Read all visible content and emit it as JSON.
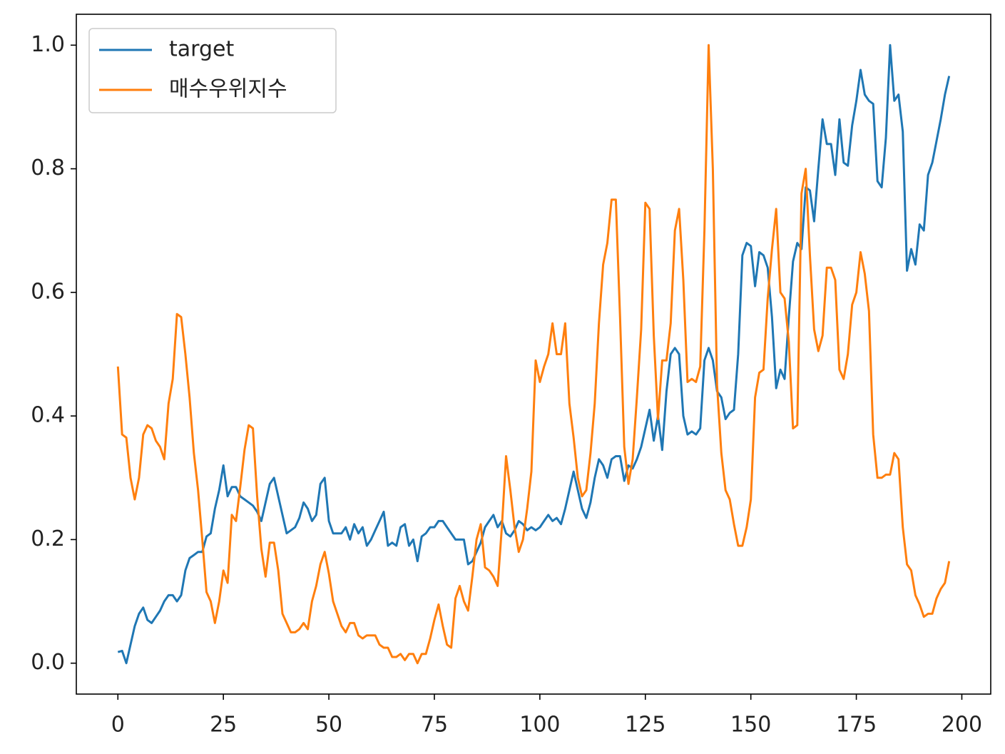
{
  "chart_data": {
    "type": "line",
    "x": [
      0,
      1,
      2,
      3,
      4,
      5,
      6,
      7,
      8,
      9,
      10,
      11,
      12,
      13,
      14,
      15,
      16,
      17,
      18,
      19,
      20,
      21,
      22,
      23,
      24,
      25,
      26,
      27,
      28,
      29,
      30,
      31,
      32,
      33,
      34,
      35,
      36,
      37,
      38,
      39,
      40,
      41,
      42,
      43,
      44,
      45,
      46,
      47,
      48,
      49,
      50,
      51,
      52,
      53,
      54,
      55,
      56,
      57,
      58,
      59,
      60,
      61,
      62,
      63,
      64,
      65,
      66,
      67,
      68,
      69,
      70,
      71,
      72,
      73,
      74,
      75,
      76,
      77,
      78,
      79,
      80,
      81,
      82,
      83,
      84,
      85,
      86,
      87,
      88,
      89,
      90,
      91,
      92,
      93,
      94,
      95,
      96,
      97,
      98,
      99,
      100,
      101,
      102,
      103,
      104,
      105,
      106,
      107,
      108,
      109,
      110,
      111,
      112,
      113,
      114,
      115,
      116,
      117,
      118,
      119,
      120,
      121,
      122,
      123,
      124,
      125,
      126,
      127,
      128,
      129,
      130,
      131,
      132,
      133,
      134,
      135,
      136,
      137,
      138,
      139,
      140,
      141,
      142,
      143,
      144,
      145,
      146,
      147,
      148,
      149,
      150,
      151,
      152,
      153,
      154,
      155,
      156,
      157,
      158,
      159,
      160,
      161,
      162,
      163,
      164,
      165,
      166,
      167,
      168,
      169,
      170,
      171,
      172,
      173,
      174,
      175,
      176,
      177,
      178,
      179,
      180,
      181,
      182,
      183,
      184,
      185,
      186,
      187,
      188,
      189,
      190,
      191,
      192,
      193,
      194,
      195,
      196,
      197
    ],
    "series": [
      {
        "name": "target",
        "color": "#1f77b4",
        "values": [
          0.018,
          0.02,
          0.0,
          0.03,
          0.06,
          0.08,
          0.09,
          0.07,
          0.065,
          0.075,
          0.085,
          0.1,
          0.11,
          0.11,
          0.1,
          0.11,
          0.15,
          0.17,
          0.175,
          0.18,
          0.18,
          0.205,
          0.21,
          0.25,
          0.28,
          0.32,
          0.27,
          0.285,
          0.285,
          0.27,
          0.265,
          0.26,
          0.255,
          0.245,
          0.23,
          0.26,
          0.29,
          0.3,
          0.27,
          0.24,
          0.21,
          0.215,
          0.22,
          0.235,
          0.26,
          0.25,
          0.23,
          0.24,
          0.29,
          0.3,
          0.23,
          0.21,
          0.21,
          0.21,
          0.22,
          0.2,
          0.225,
          0.21,
          0.22,
          0.19,
          0.2,
          0.215,
          0.23,
          0.245,
          0.19,
          0.195,
          0.19,
          0.22,
          0.225,
          0.19,
          0.2,
          0.165,
          0.205,
          0.21,
          0.22,
          0.22,
          0.23,
          0.23,
          0.22,
          0.21,
          0.2,
          0.2,
          0.2,
          0.16,
          0.165,
          0.18,
          0.195,
          0.22,
          0.23,
          0.24,
          0.22,
          0.23,
          0.21,
          0.205,
          0.215,
          0.23,
          0.225,
          0.215,
          0.22,
          0.215,
          0.22,
          0.23,
          0.24,
          0.23,
          0.235,
          0.225,
          0.25,
          0.28,
          0.31,
          0.28,
          0.25,
          0.235,
          0.26,
          0.3,
          0.33,
          0.32,
          0.3,
          0.33,
          0.335,
          0.335,
          0.295,
          0.32,
          0.315,
          0.33,
          0.35,
          0.38,
          0.41,
          0.36,
          0.4,
          0.345,
          0.44,
          0.5,
          0.51,
          0.5,
          0.4,
          0.37,
          0.375,
          0.37,
          0.38,
          0.49,
          0.51,
          0.49,
          0.44,
          0.43,
          0.395,
          0.405,
          0.41,
          0.5,
          0.66,
          0.68,
          0.675,
          0.61,
          0.665,
          0.66,
          0.64,
          0.56,
          0.445,
          0.475,
          0.46,
          0.56,
          0.65,
          0.68,
          0.67,
          0.77,
          0.765,
          0.715,
          0.8,
          0.88,
          0.84,
          0.84,
          0.79,
          0.88,
          0.81,
          0.805,
          0.87,
          0.91,
          0.96,
          0.92,
          0.91,
          0.905,
          0.78,
          0.77,
          0.85,
          1.0,
          0.91,
          0.92,
          0.86,
          0.635,
          0.67,
          0.645,
          0.71,
          0.7,
          0.79,
          0.81,
          0.845,
          0.88,
          0.92,
          0.95
        ]
      },
      {
        "name": "매수우위지수",
        "color": "#ff7f0e",
        "values": [
          0.48,
          0.37,
          0.365,
          0.3,
          0.265,
          0.3,
          0.37,
          0.385,
          0.38,
          0.36,
          0.35,
          0.33,
          0.42,
          0.46,
          0.565,
          0.56,
          0.5,
          0.43,
          0.34,
          0.28,
          0.2,
          0.115,
          0.1,
          0.065,
          0.1,
          0.15,
          0.13,
          0.24,
          0.23,
          0.285,
          0.345,
          0.385,
          0.38,
          0.27,
          0.185,
          0.14,
          0.195,
          0.195,
          0.15,
          0.08,
          0.065,
          0.05,
          0.05,
          0.055,
          0.065,
          0.055,
          0.1,
          0.125,
          0.16,
          0.18,
          0.145,
          0.1,
          0.08,
          0.06,
          0.05,
          0.065,
          0.065,
          0.045,
          0.04,
          0.045,
          0.045,
          0.045,
          0.03,
          0.025,
          0.025,
          0.01,
          0.01,
          0.015,
          0.005,
          0.015,
          0.015,
          0.0,
          0.015,
          0.015,
          0.04,
          0.07,
          0.095,
          0.06,
          0.03,
          0.025,
          0.105,
          0.125,
          0.1,
          0.085,
          0.14,
          0.2,
          0.225,
          0.155,
          0.15,
          0.14,
          0.125,
          0.22,
          0.335,
          0.28,
          0.22,
          0.18,
          0.2,
          0.25,
          0.31,
          0.49,
          0.455,
          0.48,
          0.5,
          0.55,
          0.5,
          0.5,
          0.55,
          0.42,
          0.365,
          0.3,
          0.27,
          0.28,
          0.34,
          0.42,
          0.55,
          0.645,
          0.68,
          0.75,
          0.75,
          0.56,
          0.35,
          0.29,
          0.33,
          0.43,
          0.54,
          0.745,
          0.735,
          0.53,
          0.395,
          0.49,
          0.49,
          0.55,
          0.7,
          0.735,
          0.62,
          0.455,
          0.46,
          0.455,
          0.48,
          0.7,
          1.0,
          0.8,
          0.45,
          0.34,
          0.28,
          0.265,
          0.225,
          0.19,
          0.19,
          0.22,
          0.265,
          0.43,
          0.47,
          0.475,
          0.59,
          0.67,
          0.735,
          0.6,
          0.59,
          0.52,
          0.38,
          0.385,
          0.76,
          0.8,
          0.66,
          0.54,
          0.505,
          0.53,
          0.64,
          0.64,
          0.62,
          0.475,
          0.46,
          0.5,
          0.58,
          0.6,
          0.665,
          0.63,
          0.57,
          0.37,
          0.3,
          0.3,
          0.305,
          0.305,
          0.34,
          0.33,
          0.22,
          0.16,
          0.15,
          0.11,
          0.095,
          0.075,
          0.08,
          0.08,
          0.105,
          0.12,
          0.13,
          0.165
        ]
      }
    ],
    "xlim": [
      -9.85,
      206.85
    ],
    "xticks": [
      0,
      25,
      50,
      75,
      100,
      125,
      150,
      175,
      200
    ],
    "ylim": [
      -0.05,
      1.05
    ],
    "yticks": [
      {
        "value": 0,
        "label": "0.0"
      },
      0.2,
      0.4,
      0.6,
      0.8,
      {
        "value": 1,
        "label": "1.0"
      }
    ],
    "legend": "upper left",
    "grid": false
  }
}
